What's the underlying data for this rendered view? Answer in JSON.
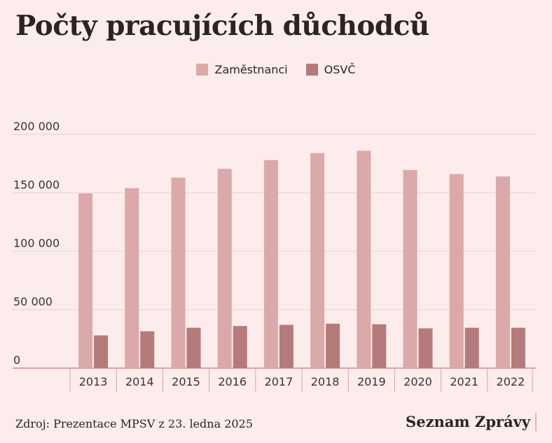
{
  "title": "Počty pracujících důchodců",
  "source": "Zdroj: Prezentace MPSV z 23. ledna 2025",
  "brand": "Seznam Zprávy",
  "colors": {
    "background": "#fcecec",
    "zamestnanci": "#dba9a9",
    "osvc": "#b57a7a",
    "grid": "#ecd0d0",
    "axis": "#d9a3a3"
  },
  "chart_data": {
    "type": "bar",
    "categories": [
      "2013",
      "2014",
      "2015",
      "2016",
      "2017",
      "2018",
      "2019",
      "2020",
      "2021",
      "2022"
    ],
    "series": [
      {
        "name": "Zaměstnanci",
        "values": [
          149500,
          154000,
          163000,
          170500,
          178000,
          184000,
          186000,
          169500,
          166000,
          164000
        ]
      },
      {
        "name": "OSVČ",
        "values": [
          28000,
          31500,
          34500,
          36000,
          37000,
          38000,
          37500,
          34000,
          34500,
          34500
        ]
      }
    ],
    "yticks": [
      {
        "value": 0,
        "label": "0"
      },
      {
        "value": 50000,
        "label": "50 000"
      },
      {
        "value": 100000,
        "label": "100 000"
      },
      {
        "value": 150000,
        "label": "150 000"
      },
      {
        "value": 200000,
        "label": "200 000"
      }
    ],
    "ylim": [
      0,
      200000
    ],
    "grid": true,
    "legend_position": "top-center"
  }
}
